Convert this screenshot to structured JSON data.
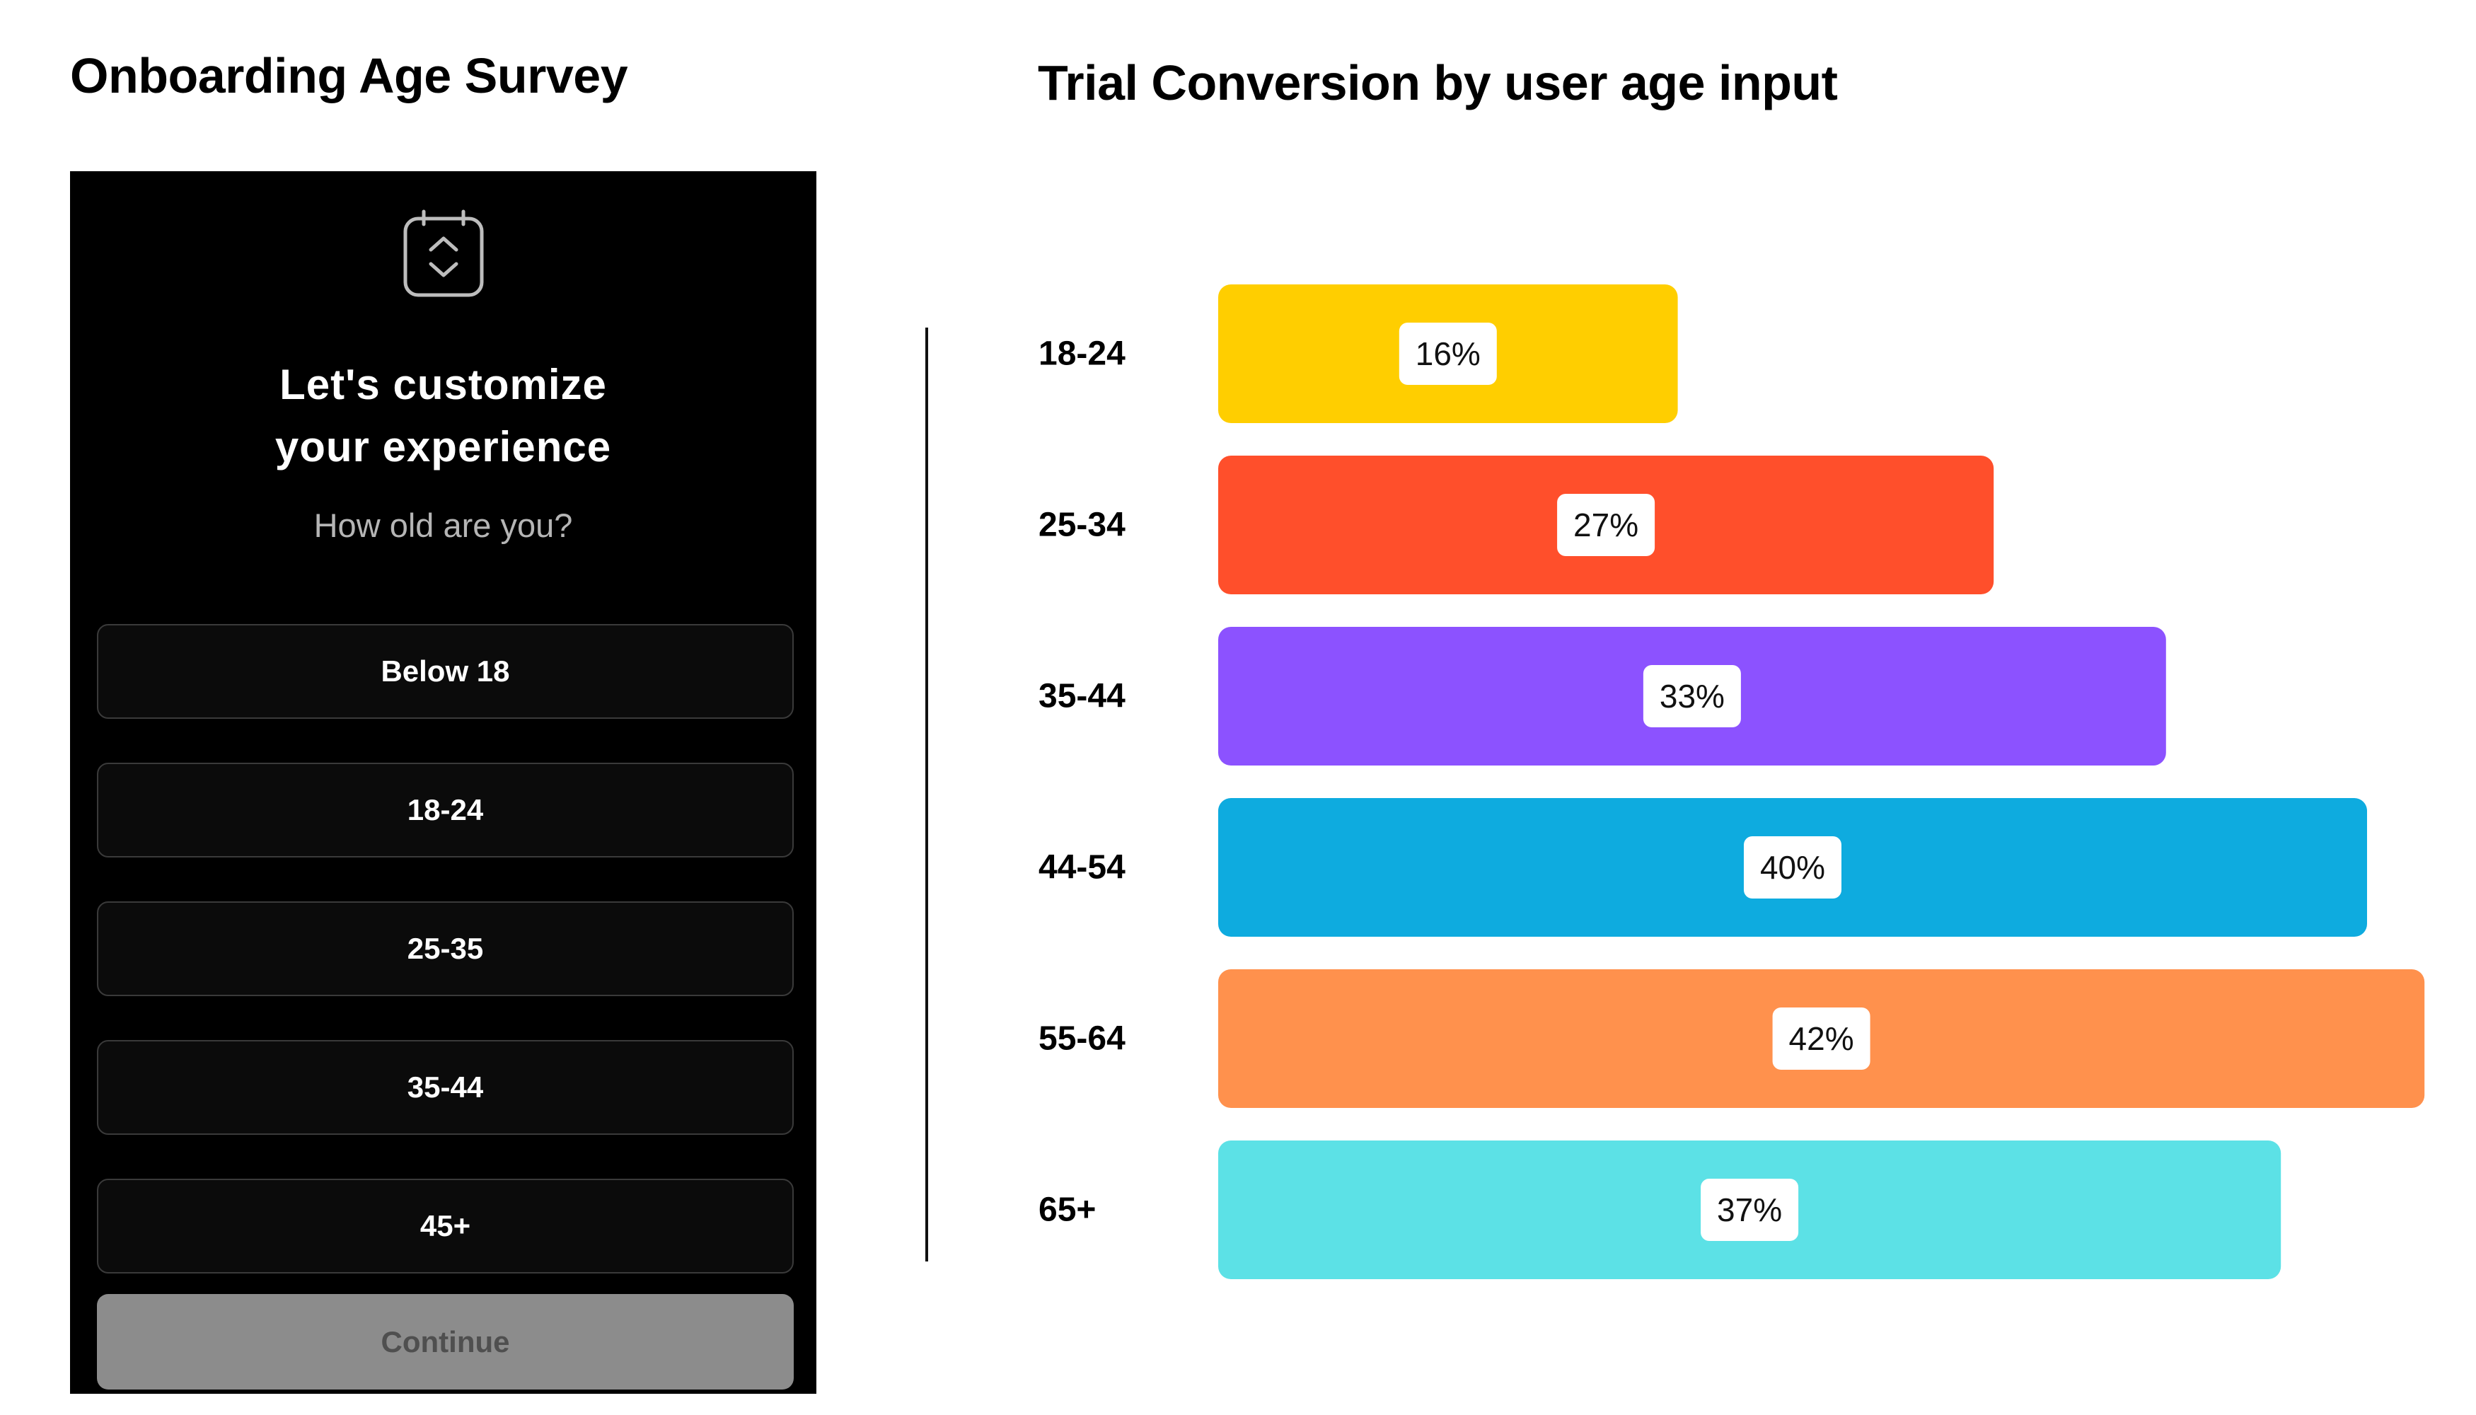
{
  "left_title": "Onboarding Age Survey",
  "survey": {
    "icon": "calendar-scroll-icon",
    "heading_line1": "Let's customize",
    "heading_line2": "your experience",
    "question": "How old are you?",
    "options": [
      "Below 18",
      "18-24",
      "25-35",
      "35-44",
      "45+"
    ],
    "continue_label": "Continue"
  },
  "chart_data": {
    "type": "bar",
    "orientation": "horizontal",
    "title": "Trial Conversion by user age input",
    "categories": [
      "18-24",
      "25-34",
      "35-44",
      "44-54",
      "55-64",
      "65+"
    ],
    "values": [
      16,
      27,
      33,
      40,
      42,
      37
    ],
    "labels": [
      "16%",
      "27%",
      "33%",
      "40%",
      "42%",
      "37%"
    ],
    "colors": [
      "#FFCE00",
      "#FF4F2B",
      "#8C52FF",
      "#0EABDF",
      "#FF914D",
      "#5CE1E6"
    ],
    "unit": "%"
  }
}
